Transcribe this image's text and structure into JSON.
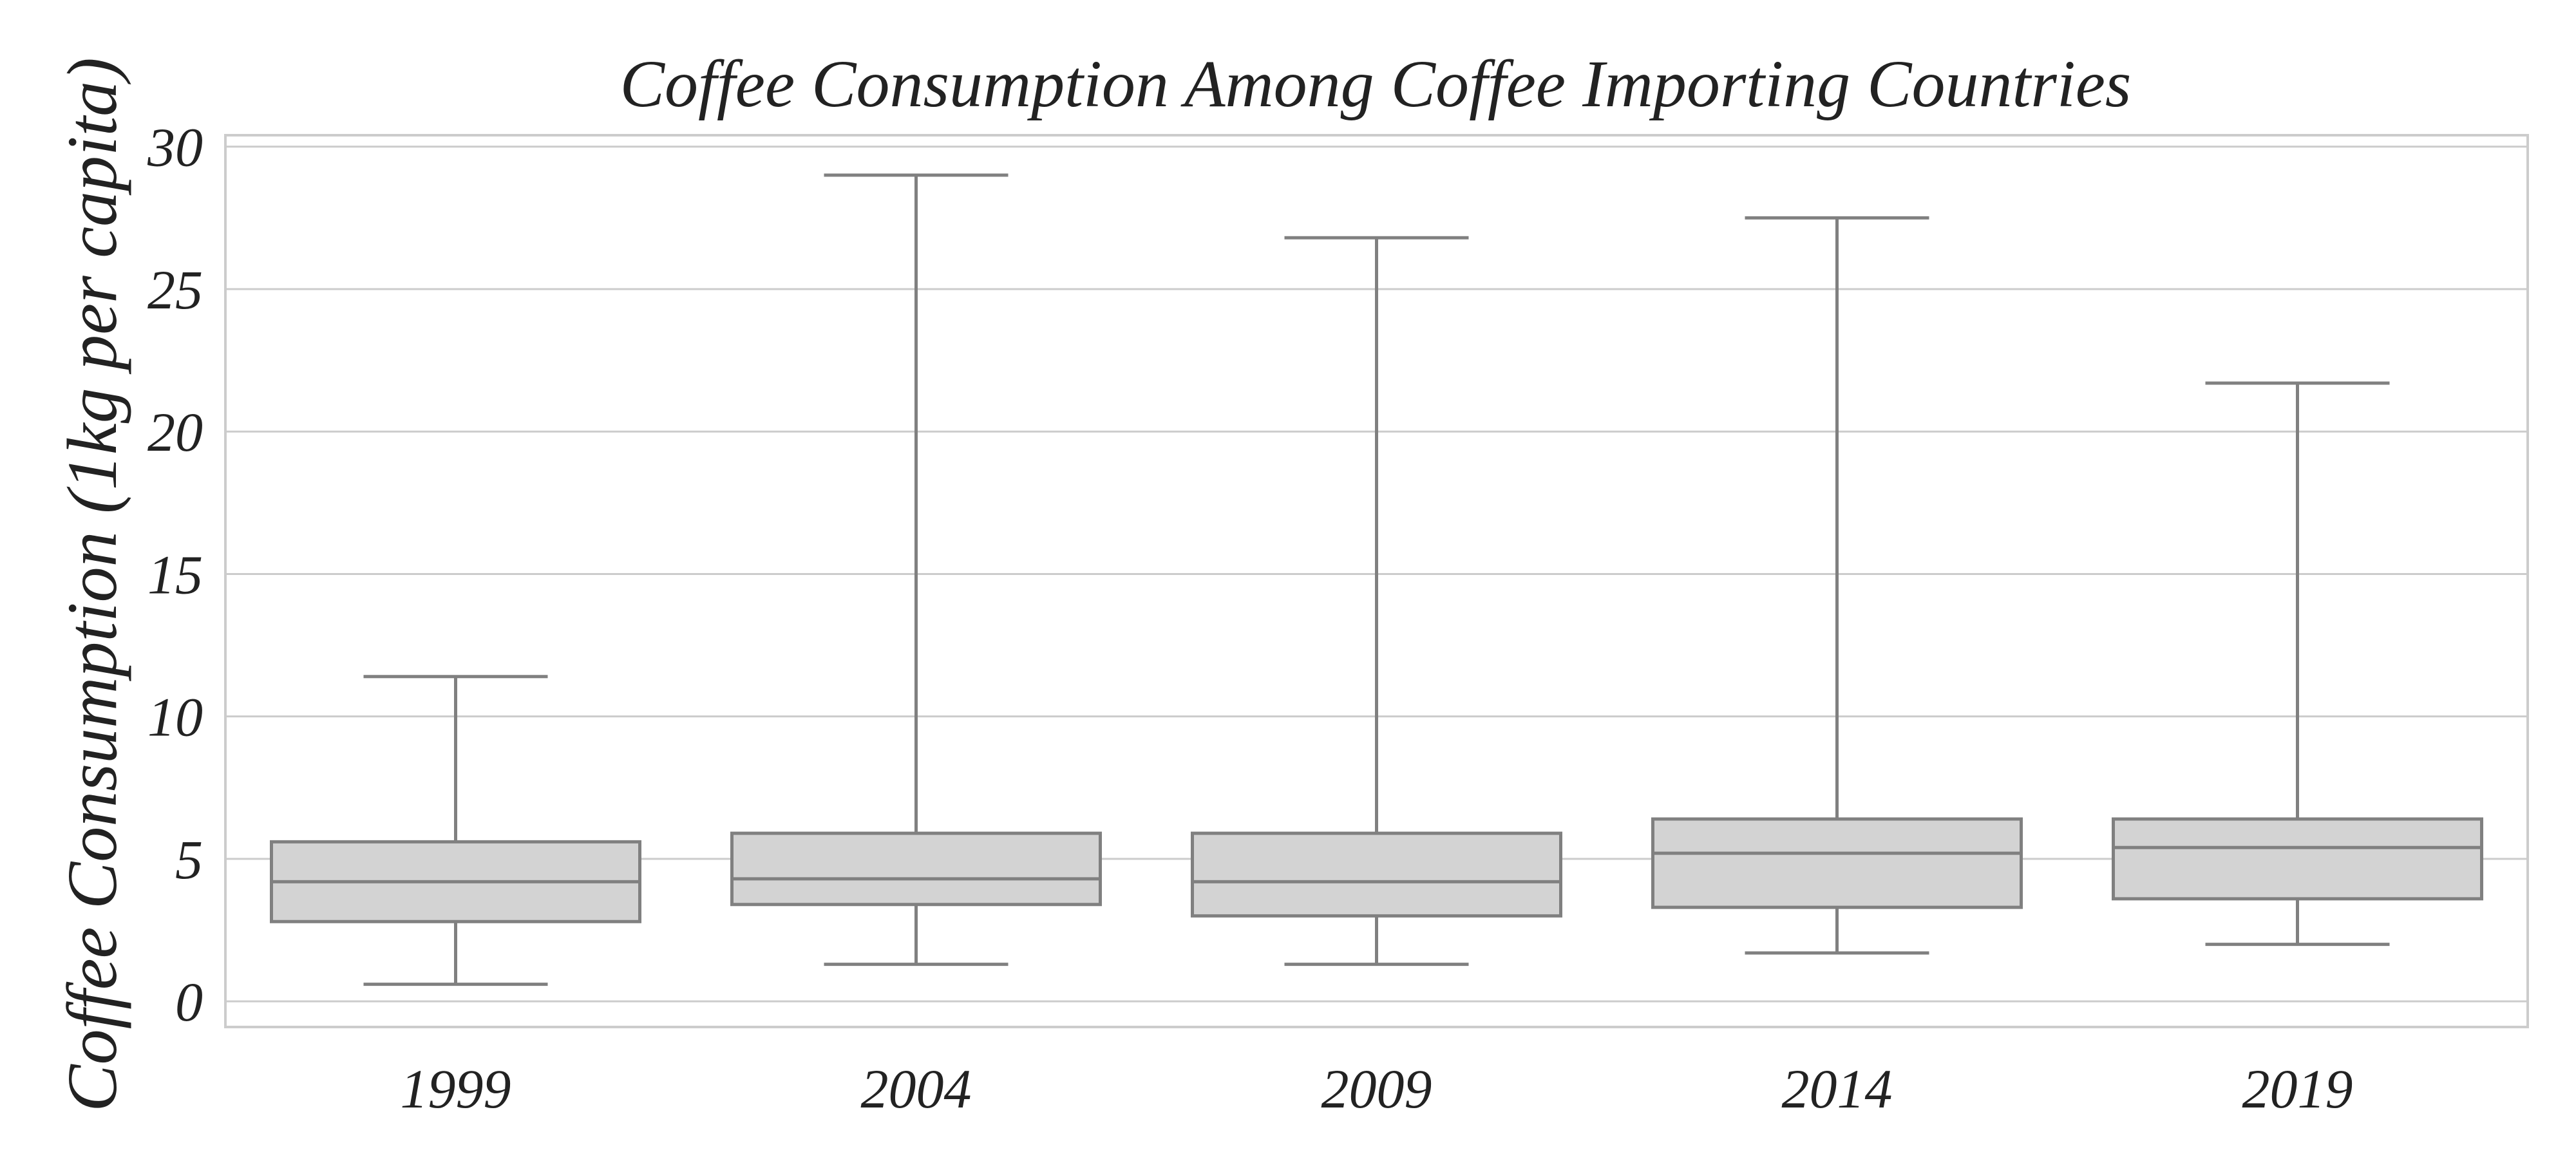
{
  "chart_data": {
    "type": "box",
    "title": "Coffee Consumption Among Coffee Importing Countries",
    "xlabel": "",
    "ylabel": "Coffee Consumption (1kg per capita)",
    "categories": [
      "1999",
      "2004",
      "2009",
      "2014",
      "2019"
    ],
    "yticks": [
      0,
      5,
      10,
      15,
      20,
      25,
      30
    ],
    "ytick_labels": [
      "0",
      "5",
      "10",
      "15",
      "20",
      "25",
      "30"
    ],
    "ylim": [
      -0.9,
      30.4
    ],
    "grid": true,
    "boxes": [
      {
        "category": "1999",
        "whislo": 0.6,
        "q1": 2.8,
        "med": 4.2,
        "q3": 5.6,
        "whishi": 11.4
      },
      {
        "category": "2004",
        "whislo": 1.3,
        "q1": 3.4,
        "med": 4.3,
        "q3": 5.9,
        "whishi": 29.0
      },
      {
        "category": "2009",
        "whislo": 1.3,
        "q1": 3.0,
        "med": 4.2,
        "q3": 5.9,
        "whishi": 26.8
      },
      {
        "category": "2014",
        "whislo": 1.7,
        "q1": 3.3,
        "med": 5.2,
        "q3": 6.4,
        "whishi": 27.5
      },
      {
        "category": "2019",
        "whislo": 2.0,
        "q1": 3.6,
        "med": 5.4,
        "q3": 6.4,
        "whishi": 21.7
      }
    ],
    "colors": {
      "box_fill": "#d3d3d3",
      "line": "#808080",
      "grid": "#cccccc",
      "text": "#222222"
    }
  }
}
